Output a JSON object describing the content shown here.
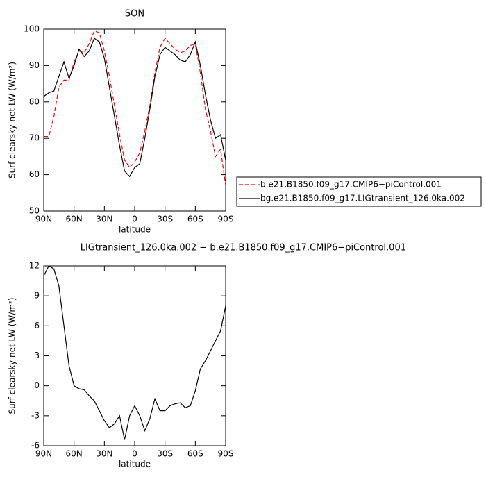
{
  "chart_data": [
    {
      "type": "line",
      "title": "SON",
      "xlabel": "latitude",
      "ylabel": "Surf clearsky net LW (W/m²)",
      "x": [
        90,
        85,
        80,
        75,
        70,
        65,
        60,
        55,
        50,
        45,
        40,
        35,
        30,
        25,
        20,
        15,
        10,
        5,
        0,
        -5,
        -10,
        -15,
        -20,
        -25,
        -30,
        -35,
        -40,
        -45,
        -50,
        -55,
        -60,
        -65,
        -70,
        -75,
        -80,
        -85,
        -90
      ],
      "series": [
        {
          "name": "b.e21.B1850.f09_g17.CMIP6−piControl.001",
          "color": "#ff0000",
          "dash": "dashed",
          "values": [
            70.5,
            70.5,
            76,
            84,
            86,
            86,
            91,
            94,
            93.5,
            96,
            99.5,
            99,
            94,
            87,
            79,
            71,
            64,
            62,
            63.5,
            66,
            72,
            79,
            88,
            95,
            97.5,
            96,
            94.5,
            93.5,
            94,
            95.5,
            96,
            88,
            78,
            72,
            65,
            67,
            57
          ]
        },
        {
          "name": "bg.e21.B1850.f09_g17.LIGtransient_126.0ka.002",
          "color": "#000000",
          "dash": "solid",
          "values": [
            81.5,
            82.5,
            83,
            87,
            91,
            86.5,
            90,
            94.5,
            92.5,
            94,
            97.5,
            96.5,
            92,
            84,
            76,
            68,
            61,
            59.5,
            62,
            63,
            70,
            78,
            87,
            93,
            95,
            94,
            93,
            91.5,
            91,
            93,
            96.5,
            90,
            82,
            75,
            70,
            71,
            64
          ]
        }
      ],
      "xlim": [
        90,
        -90
      ],
      "xticks": [
        {
          "value": 90,
          "label": "90N"
        },
        {
          "value": 60,
          "label": "60N"
        },
        {
          "value": 30,
          "label": "30N"
        },
        0,
        {
          "value": -30,
          "label": "30S"
        },
        {
          "value": -60,
          "label": "60S"
        },
        {
          "value": -90,
          "label": "90S"
        }
      ],
      "ylim": [
        50,
        100
      ],
      "yticks": [
        50,
        60,
        70,
        80,
        90,
        100
      ],
      "legend": "right"
    },
    {
      "type": "line",
      "title": "LIGtransient_126.0ka.002 − b.e21.B1850.f09_g17.CMIP6−piControl.001",
      "xlabel": "latitude",
      "ylabel": "Surf clearsky net LW (W/m²)",
      "x": [
        90,
        85,
        80,
        75,
        70,
        65,
        60,
        55,
        50,
        45,
        40,
        35,
        30,
        25,
        20,
        15,
        10,
        5,
        0,
        -5,
        -10,
        -15,
        -20,
        -25,
        -30,
        -35,
        -40,
        -45,
        -50,
        -55,
        -60,
        -65,
        -70,
        -75,
        -80,
        -85,
        -90
      ],
      "series": [
        {
          "color": "#000000",
          "dash": "solid",
          "values": [
            11,
            12,
            11.7,
            10,
            6,
            2,
            0,
            -0.3,
            -0.4,
            -1,
            -1.5,
            -2.5,
            -3.5,
            -4.2,
            -3.8,
            -3,
            -5.4,
            -3,
            -2,
            -3,
            -4.5,
            -3.3,
            -1.3,
            -2.5,
            -2.5,
            -2,
            -1.8,
            -1.7,
            -2.2,
            -2,
            -0.5,
            1.7,
            2.5,
            3.5,
            4.5,
            5.5,
            8
          ]
        }
      ],
      "xlim": [
        90,
        -90
      ],
      "xticks": [
        {
          "value": 90,
          "label": "90N"
        },
        {
          "value": 60,
          "label": "60N"
        },
        {
          "value": 30,
          "label": "30N"
        },
        0,
        {
          "value": -30,
          "label": "30S"
        },
        {
          "value": -60,
          "label": "60S"
        },
        {
          "value": -90,
          "label": "90S"
        }
      ],
      "ylim": [
        -6,
        12
      ],
      "yticks": [
        -6,
        -3,
        0,
        3,
        6,
        9,
        12
      ]
    }
  ]
}
